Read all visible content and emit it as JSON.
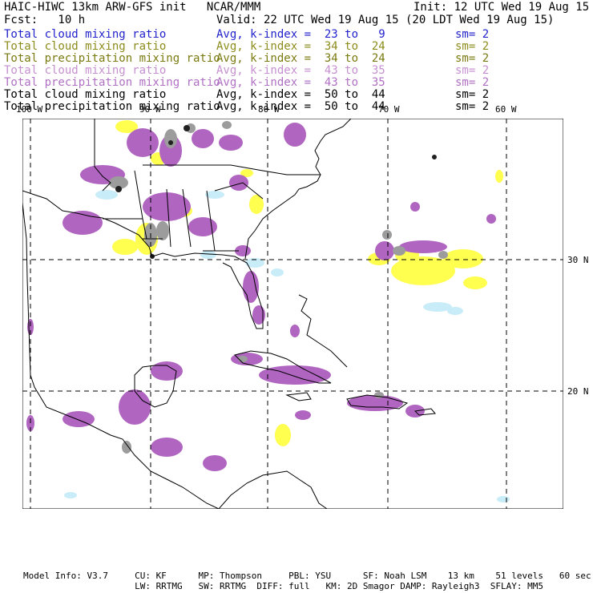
{
  "header": {
    "title": "HAIC-HIWC 13km ARW-GFS init   NCAR/MMM",
    "init": "Init: 12 UTC Wed 19 Aug 15",
    "fcst": "Fcst:   10 h",
    "valid": "Valid: 22 UTC Wed 19 Aug 15 (20 LDT Wed 19 Aug 15)"
  },
  "fields": [
    {
      "name": "Total cloud mixing ratio",
      "avg": "Avg, k-index =  23 to   9",
      "sm": "sm= 2",
      "color": "#2222cc"
    },
    {
      "name": "Total cloud mixing ratio",
      "avg": "Avg, k-index =  34 to  24",
      "sm": "sm= 2",
      "color": "#8c8c1c"
    },
    {
      "name": "Total precipitation mixing ratio",
      "avg": "Avg, k-index =  34 to  24",
      "sm": "sm= 2",
      "color": "#7a7a10"
    },
    {
      "name": "Total cloud mixing ratio",
      "avg": "Avg, k-index =  43 to  35",
      "sm": "sm= 2",
      "color": "#c690d0"
    },
    {
      "name": "Total precipitation mixing ratio",
      "avg": "Avg, k-index =  43 to  35",
      "sm": "sm= 2",
      "color": "#b070c4"
    },
    {
      "name": "Total cloud mixing ratio",
      "avg": "Avg, k-index =  50 to  44",
      "sm": "sm= 2",
      "color": "#000000"
    },
    {
      "name": "Total precipitation mixing ratio",
      "avg": "Avg, k-index =  50 to  44",
      "sm": "sm= 2",
      "color": "#000000"
    }
  ],
  "map": {
    "lon_labels": [
      "100 W",
      "90 W",
      "80 W",
      "70 W",
      "60 W"
    ],
    "lat_labels": [
      "30 N",
      "20 N"
    ],
    "colors": {
      "light_blue": "#c8ecf8",
      "yellow": "#ffff50",
      "purple": "#b065c0",
      "gray": "#9c9c9c",
      "black": "#202020"
    }
  },
  "footer": {
    "line1": "Model Info: V3.7     CU: KF      MP: Thompson     PBL: YSU      SF: Noah LSM    13 km    51 levels   60 sec",
    "line2": "                     LW: RRTMG   SW: RRTMG  DIFF: full   KM: 2D Smagor DAMP: Rayleigh3  SFLAY: MM5"
  }
}
